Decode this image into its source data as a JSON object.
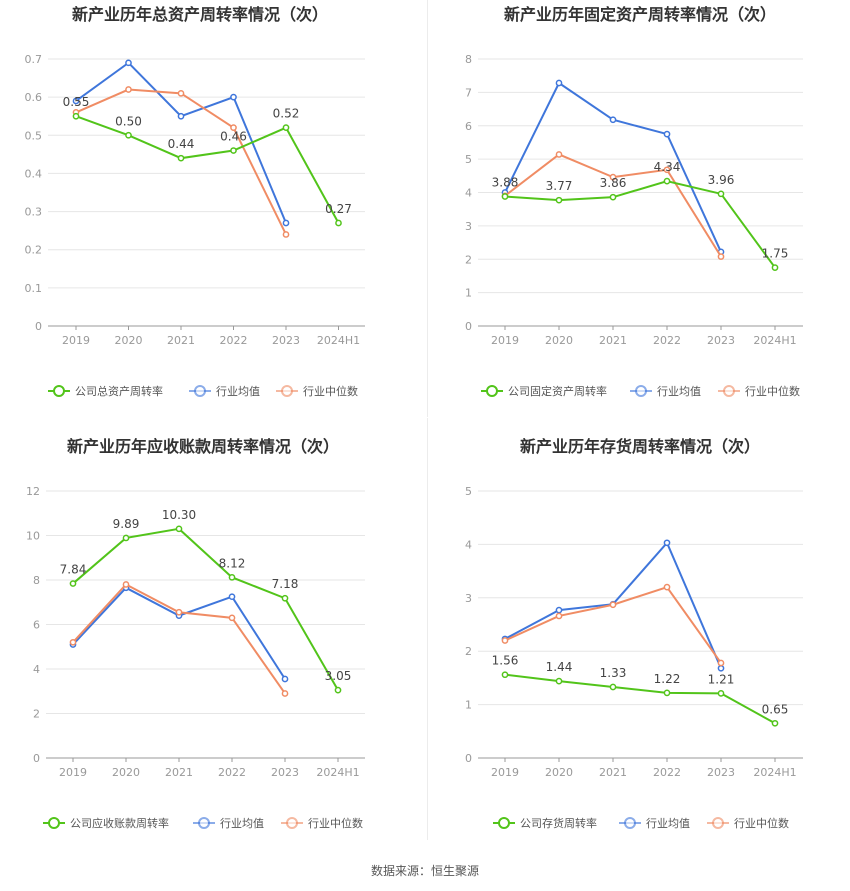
{
  "footer": {
    "source": "数据来源：恒生聚源"
  },
  "colors": {
    "company": "#52c41a",
    "avg": "#3f76db",
    "median": "#f08c64",
    "axis": "#999999",
    "grid": "#e6e6e6"
  },
  "chart_data": [
    {
      "type": "line",
      "title": "新产业历年总资产周转率情况（次）",
      "categories": [
        "2019",
        "2020",
        "2021",
        "2022",
        "2023",
        "2024H1"
      ],
      "yticks": [
        "0",
        "0.1",
        "0.2",
        "0.3",
        "0.4",
        "0.5",
        "0.6",
        "0.7"
      ],
      "ylim": [
        0,
        0.7
      ],
      "series": [
        {
          "name": "公司总资产周转率",
          "values": [
            0.55,
            0.5,
            0.44,
            0.46,
            0.52,
            0.27
          ],
          "labels": [
            "0.55",
            "0.50",
            "0.44",
            "0.46",
            "0.52",
            "0.27"
          ]
        },
        {
          "name": "行业均值",
          "values": [
            0.59,
            0.69,
            0.55,
            0.6,
            0.27,
            null
          ]
        },
        {
          "name": "行业中位数",
          "values": [
            0.56,
            0.62,
            0.61,
            0.52,
            0.24,
            null
          ]
        }
      ]
    },
    {
      "type": "line",
      "title": "新产业历年固定资产周转率情况（次）",
      "categories": [
        "2019",
        "2020",
        "2021",
        "2022",
        "2023",
        "2024H1"
      ],
      "yticks": [
        "0",
        "1",
        "2",
        "3",
        "4",
        "5",
        "6",
        "7",
        "8"
      ],
      "ylim": [
        0,
        8
      ],
      "series": [
        {
          "name": "公司固定资产周转率",
          "values": [
            3.88,
            3.77,
            3.86,
            4.34,
            3.96,
            1.75
          ],
          "labels": [
            "3.88",
            "3.77",
            "3.86",
            "4.34",
            "3.96",
            "1.75"
          ]
        },
        {
          "name": "行业均值",
          "values": [
            4.0,
            7.28,
            6.18,
            5.75,
            2.22,
            null
          ]
        },
        {
          "name": "行业中位数",
          "values": [
            3.9,
            5.14,
            4.46,
            4.68,
            2.08,
            null
          ]
        }
      ]
    },
    {
      "type": "line",
      "title": "新产业历年应收账款周转率情况（次）",
      "categories": [
        "2019",
        "2020",
        "2021",
        "2022",
        "2023",
        "2024H1"
      ],
      "yticks": [
        "0",
        "2",
        "4",
        "6",
        "8",
        "10",
        "12"
      ],
      "ylim": [
        0,
        12
      ],
      "series": [
        {
          "name": "公司应收账款周转率",
          "values": [
            7.84,
            9.89,
            10.3,
            8.12,
            7.18,
            3.05
          ],
          "labels": [
            "7.84",
            "9.89",
            "10.30",
            "8.12",
            "7.18",
            "3.05"
          ]
        },
        {
          "name": "行业均值",
          "values": [
            5.1,
            7.65,
            6.4,
            7.25,
            3.55,
            null
          ]
        },
        {
          "name": "行业中位数",
          "values": [
            5.2,
            7.8,
            6.55,
            6.3,
            2.9,
            null
          ]
        }
      ]
    },
    {
      "type": "line",
      "title": "新产业历年存货周转率情况（次）",
      "categories": [
        "2019",
        "2020",
        "2021",
        "2022",
        "2023",
        "2024H1"
      ],
      "yticks": [
        "0",
        "1",
        "2",
        "3",
        "4",
        "5"
      ],
      "ylim": [
        0,
        5
      ],
      "series": [
        {
          "name": "公司存货周转率",
          "values": [
            1.56,
            1.44,
            1.33,
            1.22,
            1.21,
            0.65
          ],
          "labels": [
            "1.56",
            "1.44",
            "1.33",
            "1.22",
            "1.21",
            "0.65"
          ]
        },
        {
          "name": "行业均值",
          "values": [
            2.23,
            2.77,
            2.88,
            4.03,
            1.68,
            null
          ]
        },
        {
          "name": "行业中位数",
          "values": [
            2.2,
            2.66,
            2.87,
            3.2,
            1.78,
            null
          ]
        }
      ]
    }
  ]
}
